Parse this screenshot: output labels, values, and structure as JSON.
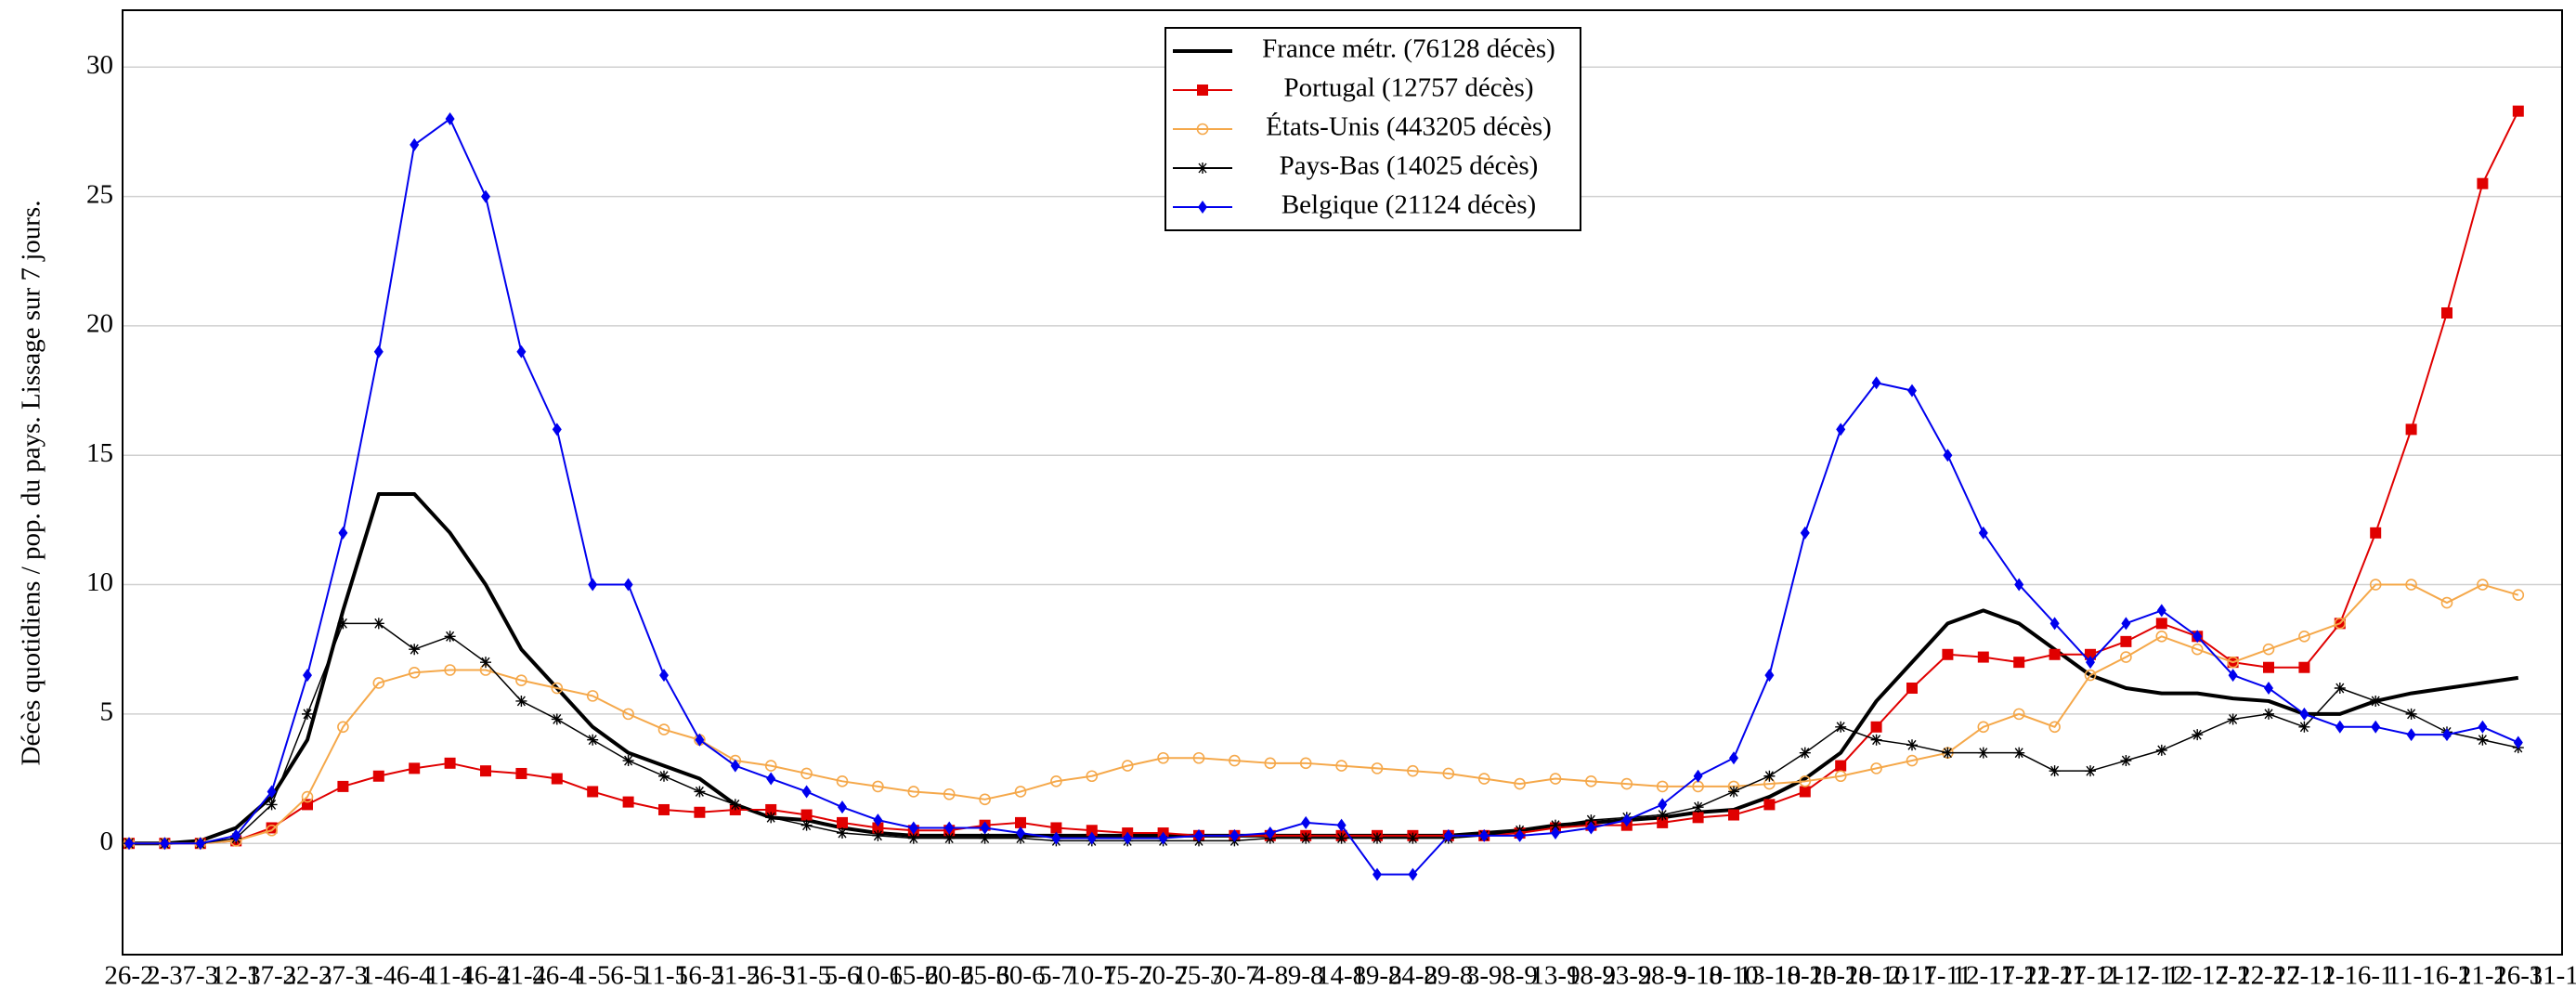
{
  "chart_data": {
    "type": "line",
    "y_label": "Décès quotidiens / pop. du pays. Lissage sur 7 jours.",
    "categories": [
      "26-2",
      "2-3",
      "7-3",
      "12-3",
      "17-3",
      "22-3",
      "27-3",
      "1-4",
      "6-4",
      "11-4",
      "16-4",
      "21-4",
      "26-4",
      "1-5",
      "6-5",
      "11-5",
      "16-5",
      "21-5",
      "26-5",
      "31-5",
      "5-6",
      "10-6",
      "15-6",
      "20-6",
      "25-6",
      "30-6",
      "5-7",
      "10-7",
      "15-7",
      "20-7",
      "25-7",
      "30-7",
      "4-8",
      "9-8",
      "14-8",
      "19-8",
      "24-8",
      "29-8",
      "3-9",
      "8-9",
      "13-9",
      "18-9",
      "23-9",
      "28-9",
      "3-10",
      "8-10",
      "13-10",
      "18-10",
      "23-10",
      "28-10",
      "2-11",
      "7-11",
      "12-11",
      "17-11",
      "22-11",
      "27-11",
      "2-12",
      "7-12",
      "12-12",
      "17-12",
      "22-12",
      "27-12",
      "1-1",
      "6-1",
      "11-1",
      "16-1",
      "21-1",
      "26-1",
      "31-1"
    ],
    "ylim": [
      -4.3,
      32.2
    ],
    "yticks": [
      0,
      5,
      10,
      15,
      20,
      25,
      30
    ],
    "grid": true,
    "series": [
      {
        "name": "France métr. (76128 décès)",
        "color": "#000000",
        "marker": "none",
        "values": [
          0,
          0,
          0.1,
          0.6,
          1.8,
          4,
          9,
          13.5,
          13.5,
          12,
          10,
          7.5,
          6,
          4.5,
          3.5,
          3,
          2.5,
          1.5,
          1.0,
          0.9,
          0.6,
          0.4,
          0.3,
          0.3,
          0.3,
          0.3,
          0.3,
          0.3,
          0.3,
          0.3,
          0.3,
          0.3,
          0.3,
          0.3,
          0.3,
          0.3,
          0.3,
          0.3,
          0.4,
          0.5,
          0.7,
          0.8,
          0.9,
          1.0,
          1.2,
          1.3,
          1.8,
          2.5,
          3.5,
          5.5,
          7.0,
          8.5,
          9.0,
          8.5,
          7.5,
          6.5,
          6.0,
          5.8,
          5.8,
          5.6,
          5.5,
          5.0,
          5.0,
          5.5,
          5.8,
          6.0,
          6.2,
          6.4,
          null
        ]
      },
      {
        "name": "Portugal (12757 décès)",
        "color": "#e00000",
        "marker": "square",
        "values": [
          0,
          0,
          0,
          0.1,
          0.6,
          1.5,
          2.2,
          2.6,
          2.9,
          3.1,
          2.8,
          2.7,
          2.5,
          2.0,
          1.6,
          1.3,
          1.2,
          1.3,
          1.3,
          1.1,
          0.8,
          0.6,
          0.5,
          0.5,
          0.7,
          0.8,
          0.6,
          0.5,
          0.4,
          0.4,
          0.3,
          0.3,
          0.3,
          0.3,
          0.3,
          0.3,
          0.3,
          0.3,
          0.3,
          0.4,
          0.6,
          0.7,
          0.7,
          0.8,
          1.0,
          1.1,
          1.5,
          2.0,
          3.0,
          4.5,
          6.0,
          7.3,
          7.2,
          7.0,
          7.3,
          7.3,
          7.8,
          8.5,
          8.0,
          7.0,
          6.8,
          6.8,
          8.5,
          12,
          16,
          20.5,
          25.5,
          28.3,
          null
        ]
      },
      {
        "name": "États-Unis (443205 décès)",
        "color": "#f5a84a",
        "marker": "circle",
        "values": [
          0,
          0,
          0,
          0.1,
          0.5,
          1.8,
          4.5,
          6.2,
          6.6,
          6.7,
          6.7,
          6.3,
          6.0,
          5.7,
          5.0,
          4.4,
          4.0,
          3.2,
          3.0,
          2.7,
          2.4,
          2.2,
          2.0,
          1.9,
          1.7,
          2.0,
          2.4,
          2.6,
          3.0,
          3.3,
          3.3,
          3.2,
          3.1,
          3.1,
          3.0,
          2.9,
          2.8,
          2.7,
          2.5,
          2.3,
          2.5,
          2.4,
          2.3,
          2.2,
          2.2,
          2.2,
          2.3,
          2.4,
          2.6,
          2.9,
          3.2,
          3.5,
          4.5,
          5.0,
          4.5,
          6.5,
          7.2,
          8.0,
          7.5,
          7.0,
          7.5,
          8.0,
          8.5,
          10.0,
          10.0,
          9.3,
          10.0,
          9.6,
          null
        ]
      },
      {
        "name": "Pays-Bas (14025 décès)",
        "color": "#000000",
        "marker": "star",
        "values": [
          0,
          0,
          0,
          0.2,
          1.5,
          5,
          8.5,
          8.5,
          7.5,
          8,
          7,
          5.5,
          4.8,
          4.0,
          3.2,
          2.6,
          2.0,
          1.5,
          1.0,
          0.7,
          0.4,
          0.3,
          0.2,
          0.2,
          0.2,
          0.2,
          0.1,
          0.1,
          0.1,
          0.1,
          0.1,
          0.1,
          0.2,
          0.2,
          0.2,
          0.2,
          0.2,
          0.2,
          0.3,
          0.5,
          0.7,
          0.9,
          1.0,
          1.1,
          1.4,
          2.0,
          2.6,
          3.5,
          4.5,
          4.0,
          3.8,
          3.5,
          3.5,
          3.5,
          2.8,
          2.8,
          3.2,
          3.6,
          4.2,
          4.8,
          5.0,
          4.5,
          6.0,
          5.5,
          5.0,
          4.3,
          4.0,
          3.7,
          null
        ]
      },
      {
        "name": "Belgique (21124 décès)",
        "color": "#0000ee",
        "marker": "diamond",
        "values": [
          0,
          0,
          0,
          0.3,
          2.0,
          6.5,
          12,
          19,
          27,
          28,
          25,
          19,
          16,
          10,
          10,
          6.5,
          4.0,
          3.0,
          2.5,
          2.0,
          1.4,
          0.9,
          0.6,
          0.6,
          0.6,
          0.4,
          0.2,
          0.2,
          0.2,
          0.2,
          0.3,
          0.3,
          0.4,
          0.8,
          0.7,
          -1.2,
          -1.2,
          0.3,
          0.3,
          0.3,
          0.4,
          0.6,
          0.9,
          1.5,
          2.6,
          3.3,
          6.5,
          12,
          16,
          17.8,
          17.5,
          15,
          12,
          10,
          8.5,
          7.0,
          8.5,
          9.0,
          8.0,
          6.5,
          6.0,
          5.0,
          4.5,
          4.5,
          4.2,
          4.2,
          4.5,
          3.9,
          null
        ]
      }
    ]
  }
}
